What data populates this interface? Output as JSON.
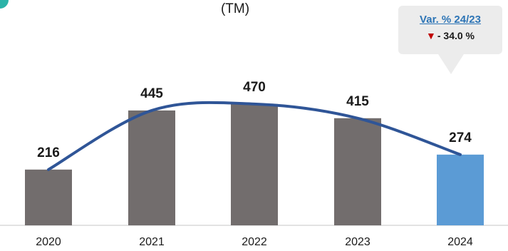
{
  "unit_label": "(TM)",
  "callout": {
    "title": "Var. % 24/23",
    "icon": "down-triangle-icon",
    "value": "- 34.0 %"
  },
  "colors": {
    "bar": "#726d6d",
    "highlight_bar": "#5b9bd5",
    "trend_line": "#2f5597",
    "down_arrow": "#c00000"
  },
  "chart_data": {
    "type": "bar",
    "categories": [
      "2020",
      "2021",
      "2022",
      "2023",
      "2024"
    ],
    "values": [
      216,
      445,
      470,
      415,
      274
    ],
    "data_labels": [
      "216",
      "445",
      "470",
      "415",
      "274"
    ],
    "highlight_category": "2024",
    "trend_line": "smoothed",
    "title": "",
    "xlabel": "",
    "ylabel": "",
    "ylim": [
      0,
      520
    ],
    "grid": false,
    "legend": "none"
  }
}
